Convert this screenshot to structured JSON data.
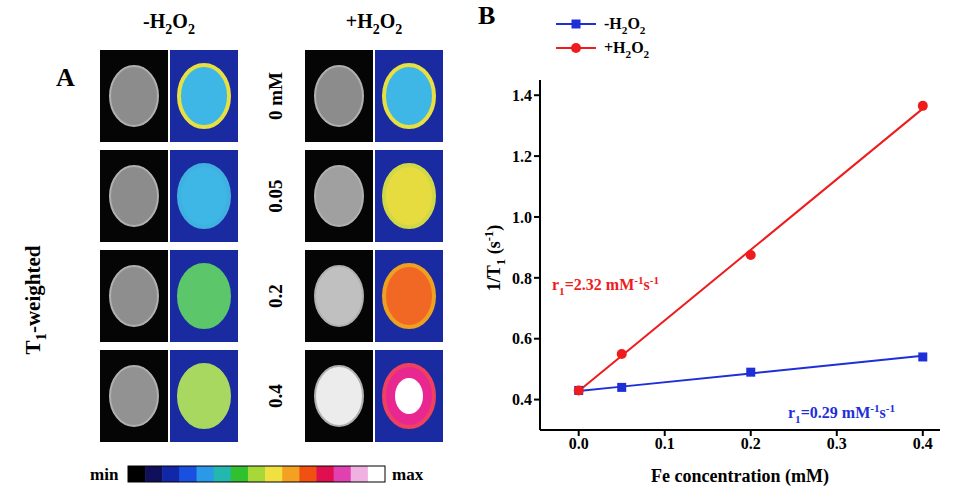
{
  "panel_a": {
    "letter": "A",
    "columns": [
      "-H2O2",
      "+H2O2"
    ],
    "rows": [
      "0 mM",
      "0.05",
      "0.2",
      "0.4"
    ],
    "side_label": "T1-weighted",
    "colorbar": {
      "min_label": "min",
      "max_label": "max"
    }
  },
  "chart_data": {
    "type": "scatter",
    "panel_label": "B",
    "x_label": "Fe concentration (mM)",
    "y_label": "1/T1 (s-1)",
    "x": [
      0,
      0.05,
      0.2,
      0.4
    ],
    "series": [
      {
        "name": "-H2O2",
        "color": "#1f2fd8",
        "marker": "square",
        "line_style": "solid",
        "values": [
          0.43,
          0.44,
          0.49,
          0.54
        ],
        "fit": [
          0.428,
          0.4425,
          0.486,
          0.544
        ]
      },
      {
        "name": "+H2O2",
        "color": "#ee1c1c",
        "marker": "circle",
        "line_style": "solid",
        "values": [
          0.43,
          0.55,
          0.875,
          1.365
        ],
        "fit": [
          0.428,
          0.544,
          0.892,
          1.356
        ]
      }
    ],
    "annotations": [
      {
        "text": "r1=0.29 mM-1s-1",
        "color": "#1f2fd8"
      },
      {
        "text": "r1=2.32 mM-1s-1",
        "color": "#ee1c1c"
      }
    ],
    "xlim": [
      -0.045,
      0.42
    ],
    "xticks": [
      {
        "value": 0,
        "label": "0.0"
      },
      0.1,
      0.2,
      0.3,
      0.4
    ],
    "ylim": [
      0.3,
      1.45
    ],
    "yticks": [
      0.4,
      0.6,
      0.8,
      {
        "value": 1,
        "label": "1.0"
      },
      1.2,
      1.4
    ],
    "legend": "upper left",
    "grid": false
  }
}
